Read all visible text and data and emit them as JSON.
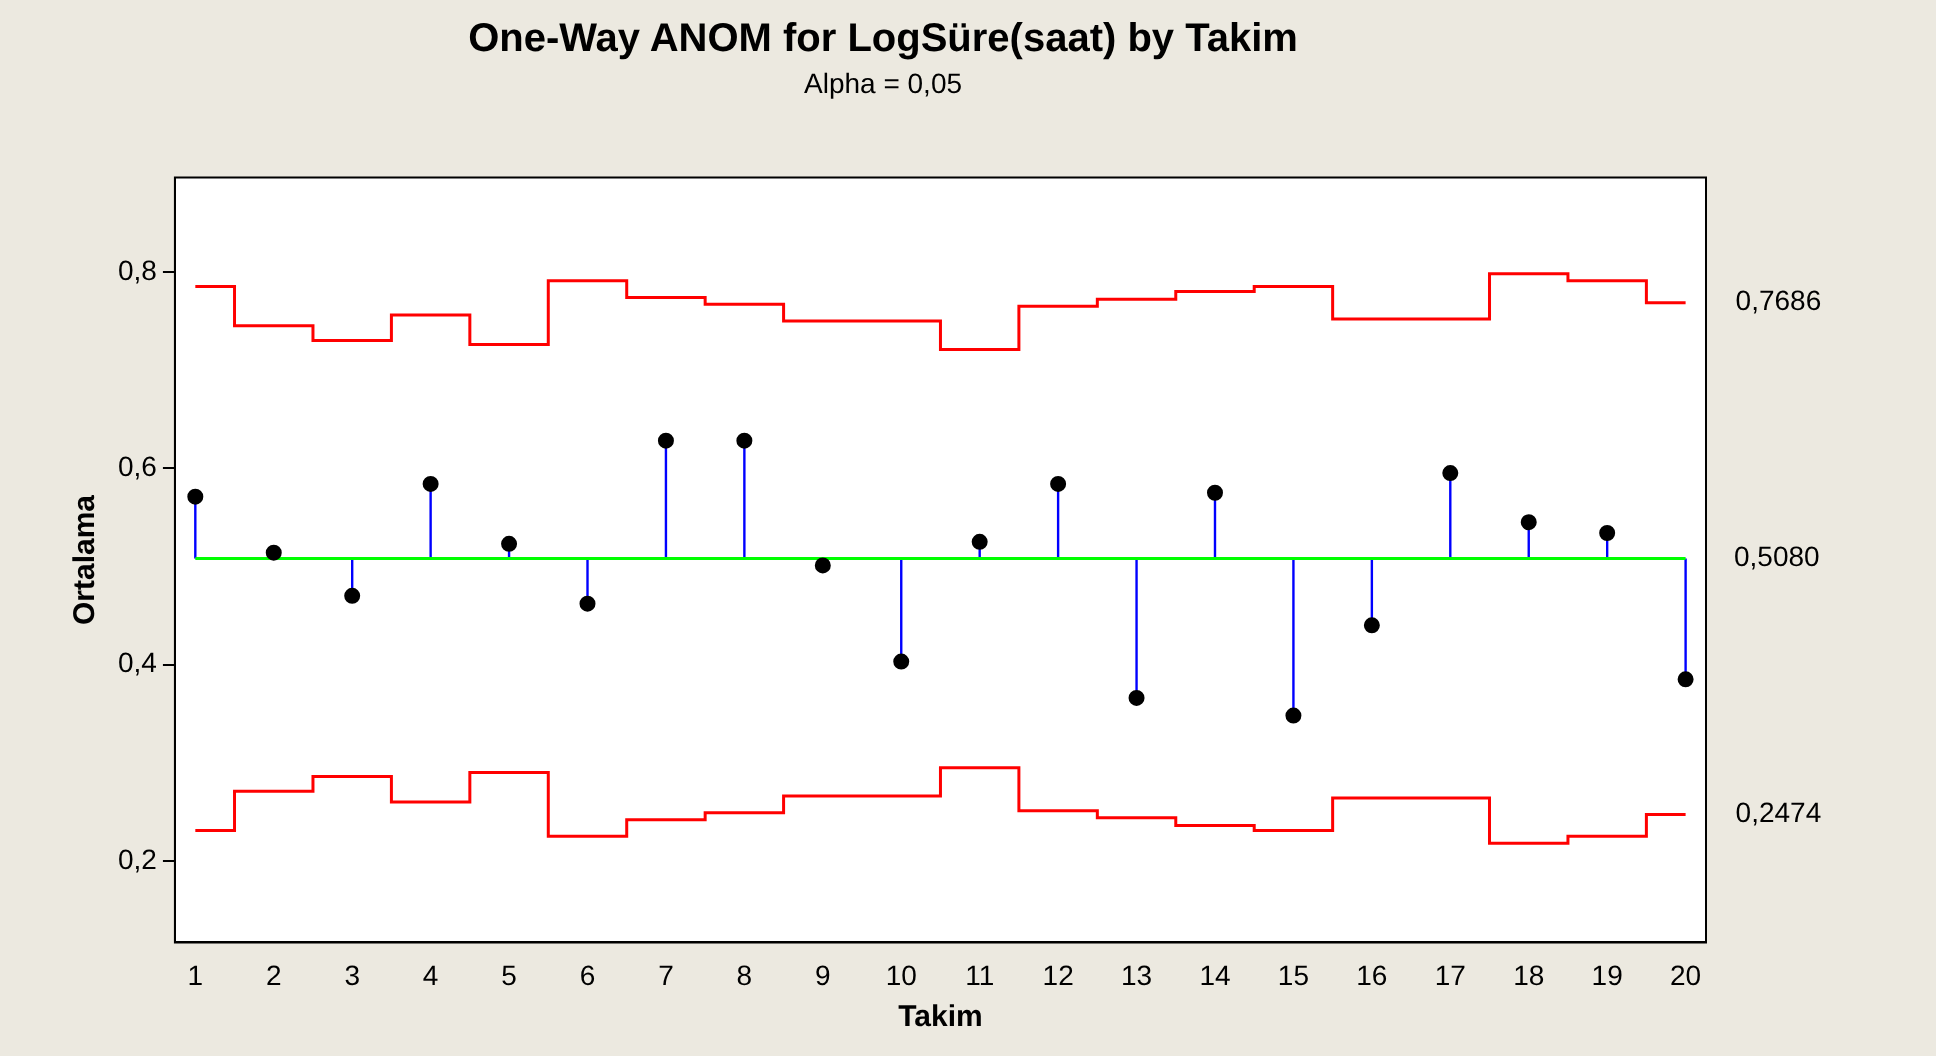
{
  "chart_data": {
    "type": "lollipop",
    "title": "One-Way ANOM for LogSüre(saat) by Takim",
    "subtitle": "Alpha = 0,05",
    "xlabel": "Takim",
    "ylabel": "Ortalama",
    "x": [
      1,
      2,
      3,
      4,
      5,
      6,
      7,
      8,
      9,
      10,
      11,
      12,
      13,
      14,
      15,
      16,
      17,
      18,
      19,
      20
    ],
    "xlim": [
      0.74,
      20.26
    ],
    "xticks": [
      1,
      2,
      3,
      4,
      5,
      6,
      7,
      8,
      9,
      10,
      11,
      12,
      13,
      14,
      15,
      16,
      17,
      18,
      19,
      20
    ],
    "ylim": [
      0.117,
      0.896
    ],
    "yticks": [
      {
        "value": 0.2,
        "label": "0,2"
      },
      {
        "value": 0.4,
        "label": "0,4"
      },
      {
        "value": 0.6,
        "label": "0,6"
      },
      {
        "value": 0.8,
        "label": "0,8"
      }
    ],
    "series": [
      {
        "color": "#000000",
        "marker": "circle",
        "values": [
          0.571,
          0.514,
          0.47,
          0.584,
          0.523,
          0.462,
          0.628,
          0.628,
          0.501,
          0.403,
          0.525,
          0.584,
          0.366,
          0.575,
          0.348,
          0.44,
          0.595,
          0.545,
          0.534,
          0.385
        ],
        "errors": [
          [
            0.508,
            0.571
          ],
          null,
          [
            0.47,
            0.508
          ],
          [
            0.508,
            0.584
          ],
          [
            0.508,
            0.523
          ],
          [
            0.462,
            0.508
          ],
          [
            0.508,
            0.628
          ],
          [
            0.508,
            0.628
          ],
          null,
          [
            0.403,
            0.508
          ],
          [
            0.508,
            0.525
          ],
          [
            0.508,
            0.584
          ],
          [
            0.366,
            0.508
          ],
          [
            0.508,
            0.575
          ],
          [
            0.348,
            0.508
          ],
          [
            0.44,
            0.508
          ],
          [
            0.508,
            0.595
          ],
          [
            0.508,
            0.545
          ],
          [
            0.508,
            0.534
          ],
          [
            0.385,
            0.508
          ]
        ]
      },
      {
        "type": "step",
        "marker": "none",
        "color": "#ff0000",
        "values": [
          0.785,
          0.745,
          0.73,
          0.756,
          0.726,
          0.791,
          0.774,
          0.767,
          0.75,
          0.75,
          0.721,
          0.765,
          0.772,
          0.78,
          0.785,
          0.752,
          0.752,
          0.798,
          0.791,
          0.7686
        ]
      },
      {
        "type": "step",
        "marker": "none",
        "color": "#ff0000",
        "values": [
          0.231,
          0.271,
          0.286,
          0.26,
          0.29,
          0.225,
          0.242,
          0.249,
          0.266,
          0.266,
          0.295,
          0.251,
          0.244,
          0.236,
          0.231,
          0.264,
          0.264,
          0.218,
          0.225,
          0.2474
        ]
      }
    ],
    "ref_lines": [
      {
        "axis": "y",
        "value": 0.508,
        "label": "0,5080",
        "color": "#00ff00"
      }
    ],
    "annotations": [
      {
        "text": "0,7686",
        "x": 20,
        "y": 0.7686
      },
      {
        "text": "0,2474",
        "x": 20,
        "y": 0.2474
      }
    ],
    "line_style": "solid",
    "grid": false,
    "legend": false
  }
}
